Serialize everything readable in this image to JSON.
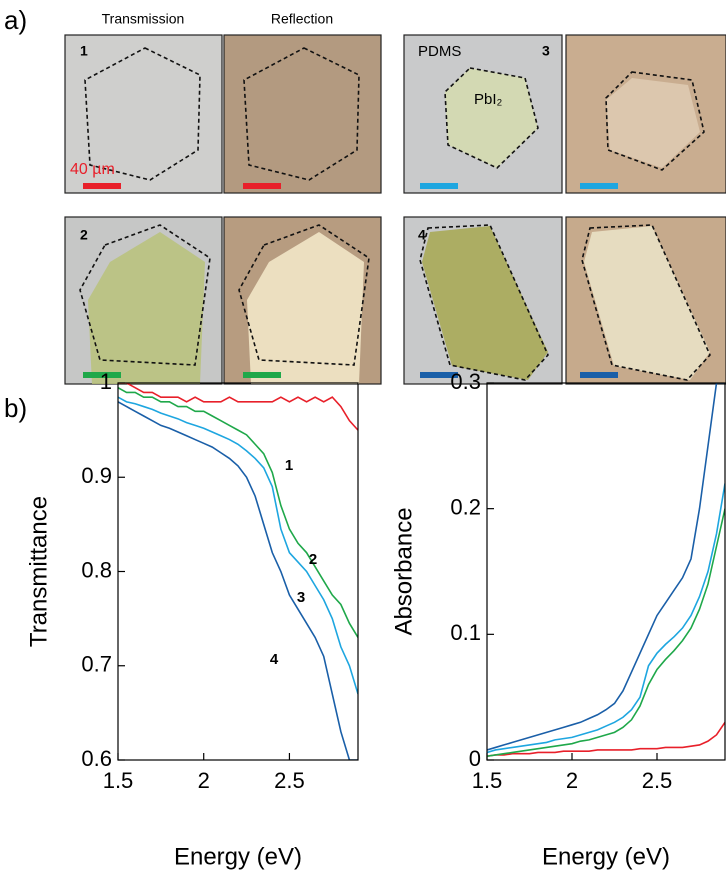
{
  "figure": {
    "panel_a": {
      "label": "a)",
      "column_headers": [
        "Transmission",
        "Reflection"
      ],
      "sample_numbers": [
        "1",
        "2",
        "3",
        "4"
      ],
      "substrate_label": "PDMS",
      "crystal_label": "PbI₂",
      "scale_bar_label": "40 µm"
    },
    "panel_b": {
      "label": "b)"
    }
  },
  "chart_data": [
    {
      "type": "line",
      "x_label": "Energy (eV)",
      "y_label": "Transmittance",
      "x": [
        1.5,
        1.55,
        1.6,
        1.65,
        1.7,
        1.75,
        1.8,
        1.85,
        1.9,
        1.95,
        2.0,
        2.05,
        2.1,
        2.15,
        2.2,
        2.25,
        2.3,
        2.35,
        2.4,
        2.45,
        2.5,
        2.55,
        2.6,
        2.65,
        2.7,
        2.75,
        2.8,
        2.85,
        2.9
      ],
      "xlim": [
        1.5,
        2.9
      ],
      "xticks": [
        1.5,
        2,
        2.5
      ],
      "ylim": [
        0.6,
        1
      ],
      "yticks": [
        0.6,
        0.7,
        0.8,
        0.9,
        1
      ],
      "series": [
        {
          "name": "1",
          "color": "#e8202a",
          "values": [
            1.0,
            1.0,
            0.995,
            0.99,
            0.99,
            0.985,
            0.985,
            0.985,
            0.98,
            0.985,
            0.98,
            0.98,
            0.98,
            0.985,
            0.98,
            0.98,
            0.98,
            0.98,
            0.98,
            0.985,
            0.98,
            0.985,
            0.98,
            0.985,
            0.98,
            0.985,
            0.975,
            0.96,
            0.95
          ]
        },
        {
          "name": "2",
          "color": "#1fa84a",
          "values": [
            0.995,
            0.99,
            0.99,
            0.985,
            0.985,
            0.98,
            0.98,
            0.975,
            0.975,
            0.97,
            0.97,
            0.965,
            0.96,
            0.955,
            0.95,
            0.945,
            0.935,
            0.925,
            0.905,
            0.87,
            0.845,
            0.83,
            0.82,
            0.805,
            0.79,
            0.775,
            0.765,
            0.745,
            0.73
          ]
        },
        {
          "name": "3",
          "color": "#1ea6e0",
          "values": [
            0.985,
            0.98,
            0.978,
            0.975,
            0.972,
            0.968,
            0.965,
            0.962,
            0.958,
            0.955,
            0.952,
            0.948,
            0.944,
            0.94,
            0.935,
            0.928,
            0.92,
            0.91,
            0.89,
            0.845,
            0.82,
            0.81,
            0.8,
            0.785,
            0.77,
            0.75,
            0.72,
            0.7,
            0.67
          ]
        },
        {
          "name": "4",
          "color": "#1a5fa8",
          "values": [
            0.98,
            0.975,
            0.97,
            0.965,
            0.96,
            0.955,
            0.952,
            0.948,
            0.944,
            0.94,
            0.936,
            0.932,
            0.926,
            0.92,
            0.912,
            0.9,
            0.88,
            0.85,
            0.82,
            0.8,
            0.775,
            0.76,
            0.745,
            0.73,
            0.71,
            0.67,
            0.63,
            0.6,
            0.6
          ]
        }
      ]
    },
    {
      "type": "line",
      "x_label": "Energy (eV)",
      "y_label": "Absorbance",
      "x": [
        1.5,
        1.55,
        1.6,
        1.65,
        1.7,
        1.75,
        1.8,
        1.85,
        1.9,
        1.95,
        2.0,
        2.05,
        2.1,
        2.15,
        2.2,
        2.25,
        2.3,
        2.35,
        2.4,
        2.45,
        2.5,
        2.55,
        2.6,
        2.65,
        2.7,
        2.75,
        2.8,
        2.85,
        2.9
      ],
      "xlim": [
        1.5,
        2.9
      ],
      "xticks": [
        1.5,
        2,
        2.5
      ],
      "ylim": [
        0,
        0.3
      ],
      "yticks": [
        0,
        0.1,
        0.2,
        0.3
      ],
      "series": [
        {
          "color": "#e8202a",
          "values": [
            0.003,
            0.004,
            0.004,
            0.005,
            0.005,
            0.005,
            0.006,
            0.006,
            0.006,
            0.007,
            0.007,
            0.007,
            0.007,
            0.008,
            0.008,
            0.008,
            0.008,
            0.008,
            0.009,
            0.009,
            0.009,
            0.01,
            0.01,
            0.01,
            0.011,
            0.012,
            0.015,
            0.02,
            0.03
          ]
        },
        {
          "color": "#1fa84a",
          "values": [
            0.003,
            0.004,
            0.005,
            0.006,
            0.007,
            0.008,
            0.009,
            0.01,
            0.011,
            0.012,
            0.013,
            0.015,
            0.016,
            0.018,
            0.02,
            0.022,
            0.026,
            0.032,
            0.043,
            0.06,
            0.072,
            0.08,
            0.087,
            0.095,
            0.105,
            0.12,
            0.14,
            0.17,
            0.2
          ]
        },
        {
          "color": "#1ea6e0",
          "values": [
            0.006,
            0.008,
            0.009,
            0.01,
            0.011,
            0.012,
            0.013,
            0.014,
            0.016,
            0.017,
            0.018,
            0.02,
            0.022,
            0.024,
            0.027,
            0.03,
            0.034,
            0.04,
            0.05,
            0.075,
            0.085,
            0.092,
            0.098,
            0.105,
            0.115,
            0.13,
            0.15,
            0.18,
            0.22
          ]
        },
        {
          "color": "#1a5fa8",
          "values": [
            0.008,
            0.01,
            0.012,
            0.014,
            0.016,
            0.018,
            0.02,
            0.022,
            0.024,
            0.026,
            0.028,
            0.03,
            0.033,
            0.036,
            0.04,
            0.045,
            0.055,
            0.07,
            0.085,
            0.1,
            0.115,
            0.125,
            0.135,
            0.145,
            0.16,
            0.2,
            0.25,
            0.3,
            0.3
          ]
        }
      ]
    }
  ]
}
